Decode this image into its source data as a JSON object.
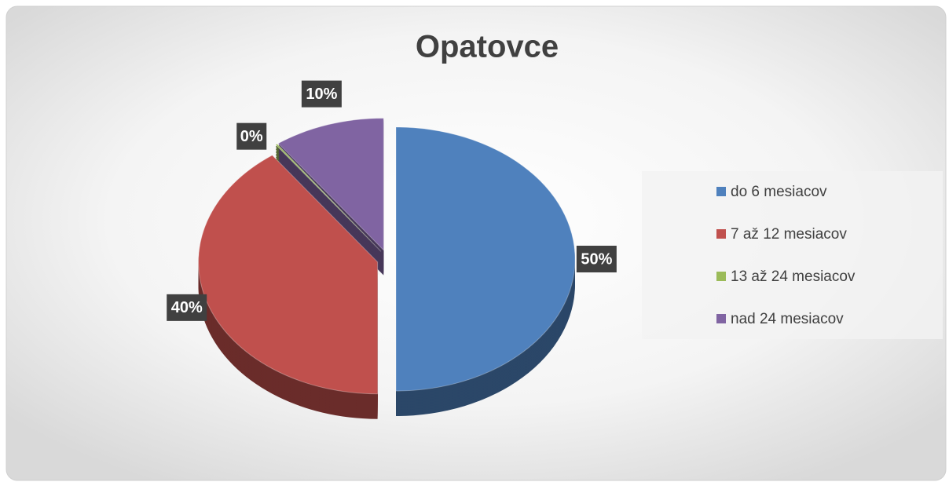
{
  "chart_data": {
    "type": "pie",
    "title": "Opatovce",
    "categories": [
      "do 6 mesiacov",
      "7 až 12 mesiacov",
      "13 až 24 mesiacov",
      "nad 24 mesiacov"
    ],
    "values": [
      50,
      40,
      0,
      10
    ],
    "value_labels": [
      "50%",
      "40%",
      "0%",
      "10%"
    ],
    "colors": [
      "#4f81bd",
      "#c0504d",
      "#9bbb59",
      "#8064a2"
    ],
    "legend": "right"
  }
}
